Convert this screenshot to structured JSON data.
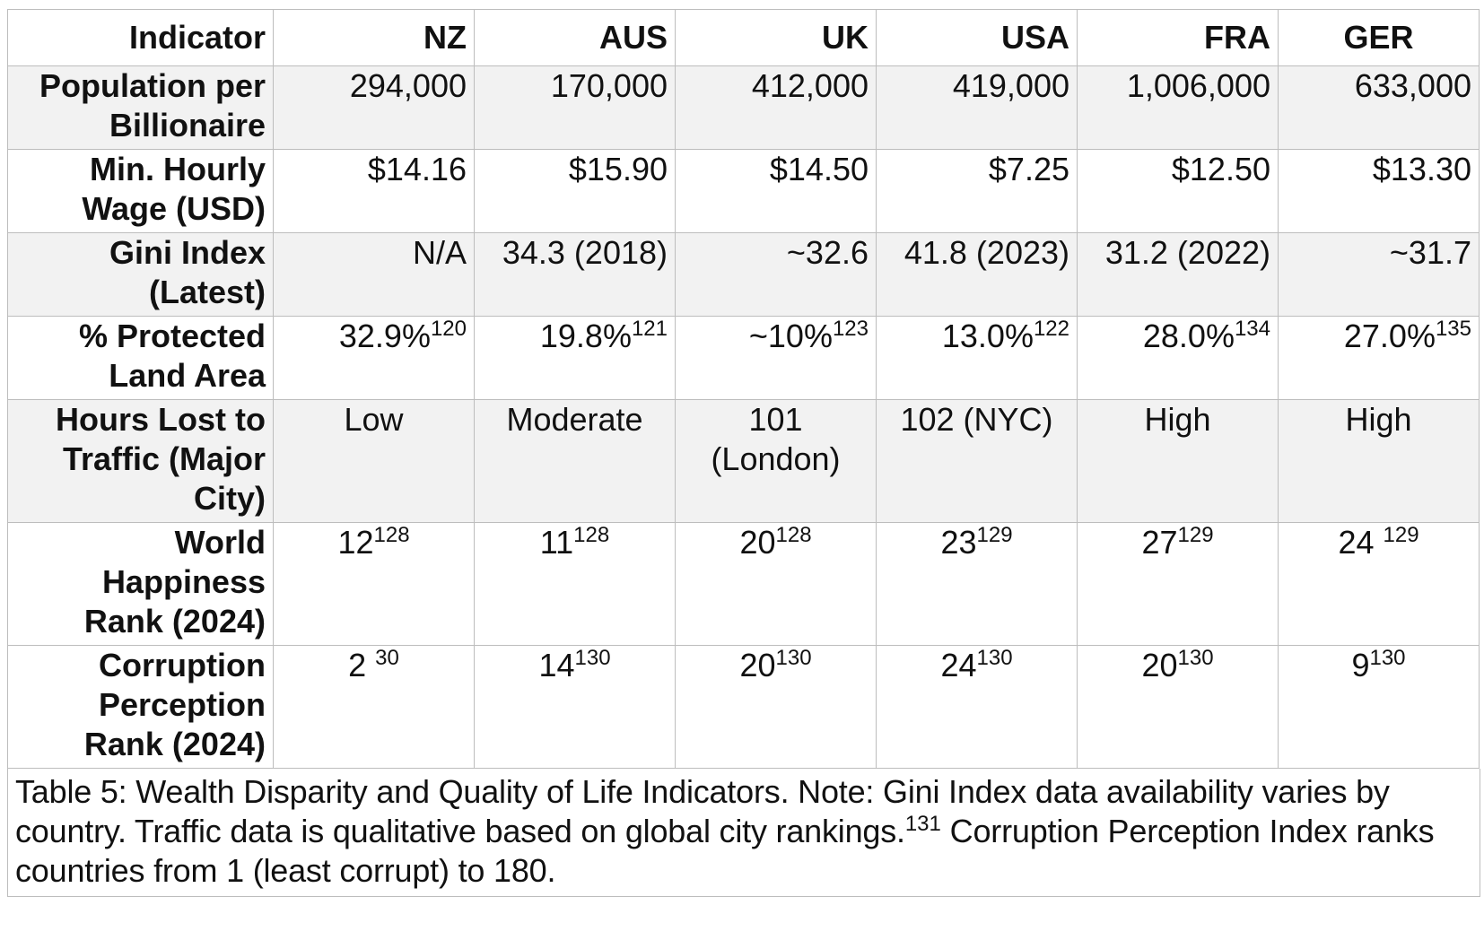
{
  "table": {
    "header": {
      "indicator": "Indicator",
      "nz": "NZ",
      "aus": "AUS",
      "uk": "UK",
      "usa": "USA",
      "fra": "FRA",
      "ger": "GER"
    },
    "rows": [
      {
        "label": "Population per Billionaire",
        "nz": {
          "value": "294,000"
        },
        "aus": {
          "value": "170,000"
        },
        "uk": {
          "value": "412,000"
        },
        "usa": {
          "value": "419,000"
        },
        "fra": {
          "value": "1,006,000"
        },
        "ger": {
          "value": "633,000"
        }
      },
      {
        "label": "Min. Hourly Wage (USD)",
        "nz": {
          "value": "$14.16"
        },
        "aus": {
          "value": "$15.90"
        },
        "uk": {
          "value": "$14.50"
        },
        "usa": {
          "value": "$7.25"
        },
        "fra": {
          "value": "$12.50"
        },
        "ger": {
          "value": "$13.30"
        }
      },
      {
        "label": "Gini Index (Latest)",
        "nz": {
          "value": "N/A"
        },
        "aus": {
          "value": "34.3 (2018)"
        },
        "uk": {
          "value": "~32.6"
        },
        "usa": {
          "value": "41.8 (2023)"
        },
        "fra": {
          "value": "31.2 (2022)"
        },
        "ger": {
          "value": "~31.7"
        }
      },
      {
        "label": "% Protected Land Area",
        "nz": {
          "value": "32.9%",
          "ref": "120"
        },
        "aus": {
          "value": "19.8%",
          "ref": "121"
        },
        "uk": {
          "value": "~10%",
          "ref": "123"
        },
        "usa": {
          "value": "13.0%",
          "ref": "122"
        },
        "fra": {
          "value": "28.0%",
          "ref": "134"
        },
        "ger": {
          "value": "27.0%",
          "ref": "135"
        }
      },
      {
        "label": "Hours Lost to Traffic (Major City)",
        "nz": {
          "value": "Low"
        },
        "aus": {
          "value": "Moderate"
        },
        "uk": {
          "value": "101 (London)"
        },
        "usa": {
          "value": "102 (NYC)"
        },
        "fra": {
          "value": "High"
        },
        "ger": {
          "value": "High"
        }
      },
      {
        "label": "World Happiness Rank (2024)",
        "nz": {
          "value": "12",
          "ref": "128"
        },
        "aus": {
          "value": "11",
          "ref": "128"
        },
        "uk": {
          "value": "20",
          "ref": "128"
        },
        "usa": {
          "value": "23",
          "ref": "129"
        },
        "fra": {
          "value": "27",
          "ref": "129"
        },
        "ger": {
          "value": "24 ",
          "ref": "129"
        }
      },
      {
        "label": "Corruption Perception Rank (2024)",
        "nz": {
          "value": "2 ",
          "ref": "30"
        },
        "aus": {
          "value": "14",
          "ref": "130"
        },
        "uk": {
          "value": "20",
          "ref": "130"
        },
        "usa": {
          "value": "24",
          "ref": "130"
        },
        "fra": {
          "value": "20",
          "ref": "130"
        },
        "ger": {
          "value": "9",
          "ref": "130"
        }
      }
    ]
  },
  "caption": {
    "text_part1": "Table 5: Wealth Disparity and Quality of Life Indicators. Note: Gini Index data availability varies by country. Traffic data is qualitative based on global city rankings.",
    "ref": "131",
    "text_part2": " Corruption Perception Index ranks countries from 1 (least corrupt) to 180."
  }
}
